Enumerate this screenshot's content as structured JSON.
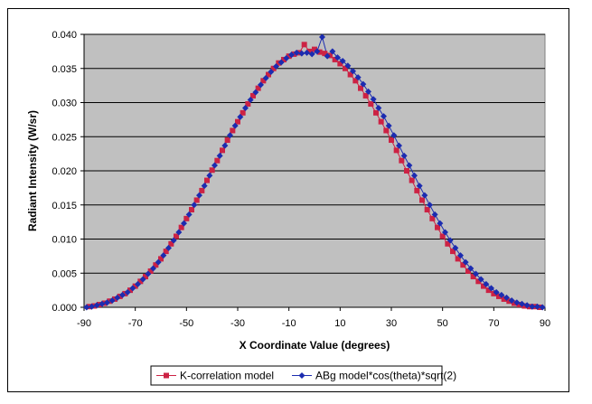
{
  "chart_data": {
    "type": "line",
    "title": "",
    "xlabel": "X Coordinate Value (degrees)",
    "ylabel": "Radiant Intensity (W/sr)",
    "xlim": [
      -90,
      90
    ],
    "ylim": [
      0,
      0.04
    ],
    "xticks": [
      "-90",
      "-70",
      "-50",
      "-30",
      "-10",
      "10",
      "30",
      "50",
      "70",
      "90"
    ],
    "yticks": [
      "0.000",
      "0.005",
      "0.010",
      "0.015",
      "0.020",
      "0.025",
      "0.030",
      "0.035",
      "0.040"
    ],
    "grid": "horizontal",
    "legend_position": "bottom",
    "colors": {
      "plot_bg": "#c0c0c0",
      "series1": "#cc2244",
      "series2": "#1c2cb0"
    },
    "series": [
      {
        "name": "K-correlation model",
        "marker": "square",
        "x": [
          -88,
          -86,
          -84,
          -82,
          -80,
          -78,
          -76,
          -74,
          -72,
          -70,
          -68,
          -66,
          -64,
          -62,
          -60,
          -58,
          -56,
          -54,
          -52,
          -50,
          -48,
          -46,
          -44,
          -42,
          -40,
          -38,
          -36,
          -34,
          -32,
          -30,
          -28,
          -26,
          -24,
          -22,
          -20,
          -18,
          -16,
          -14,
          -12,
          -10,
          -8,
          -6,
          -4,
          -2,
          0,
          2,
          4,
          6,
          8,
          10,
          12,
          14,
          16,
          18,
          20,
          22,
          24,
          26,
          28,
          30,
          32,
          34,
          36,
          38,
          40,
          42,
          44,
          46,
          48,
          50,
          52,
          54,
          56,
          58,
          60,
          62,
          64,
          66,
          68,
          70,
          72,
          74,
          76,
          78,
          80,
          82,
          84,
          86,
          88
        ],
        "y": [
          0.0001,
          0.0002,
          0.0004,
          0.0006,
          0.0009,
          0.0012,
          0.0016,
          0.002,
          0.0025,
          0.0031,
          0.0038,
          0.0045,
          0.0053,
          0.0062,
          0.0071,
          0.0082,
          0.0093,
          0.0104,
          0.0117,
          0.013,
          0.0143,
          0.0157,
          0.0171,
          0.0186,
          0.0201,
          0.0215,
          0.023,
          0.0245,
          0.0259,
          0.0272,
          0.0285,
          0.0298,
          0.031,
          0.0321,
          0.0332,
          0.0341,
          0.035,
          0.0358,
          0.0363,
          0.0368,
          0.0371,
          0.0373,
          0.0385,
          0.0375,
          0.0378,
          0.0374,
          0.0372,
          0.0369,
          0.0363,
          0.0357,
          0.035,
          0.0341,
          0.0332,
          0.0321,
          0.031,
          0.0298,
          0.0285,
          0.0272,
          0.0259,
          0.0245,
          0.023,
          0.0215,
          0.02,
          0.0186,
          0.0171,
          0.0157,
          0.0143,
          0.013,
          0.0117,
          0.0104,
          0.0093,
          0.0082,
          0.0071,
          0.0062,
          0.0053,
          0.0045,
          0.0038,
          0.0031,
          0.0025,
          0.002,
          0.0016,
          0.0012,
          0.0009,
          0.0006,
          0.0004,
          0.0002,
          0.0001,
          0.0001,
          0.0
        ]
      },
      {
        "name": "ABg model*cos(theta)*sqrt(2)",
        "marker": "diamond",
        "x": [
          -89,
          -87,
          -85,
          -83,
          -81,
          -79,
          -77,
          -75,
          -73,
          -71,
          -69,
          -67,
          -65,
          -63,
          -61,
          -59,
          -57,
          -55,
          -53,
          -51,
          -49,
          -47,
          -45,
          -43,
          -41,
          -39,
          -37,
          -35,
          -33,
          -31,
          -29,
          -27,
          -25,
          -23,
          -21,
          -19,
          -17,
          -15,
          -13,
          -11,
          -9,
          -7,
          -5,
          -3,
          -1,
          1,
          3,
          5,
          7,
          9,
          11,
          13,
          15,
          17,
          19,
          21,
          23,
          25,
          27,
          29,
          31,
          33,
          35,
          37,
          39,
          41,
          43,
          45,
          47,
          49,
          51,
          53,
          55,
          57,
          59,
          61,
          63,
          65,
          67,
          69,
          71,
          73,
          75,
          77,
          79,
          81,
          83,
          85,
          87,
          89
        ],
        "y": [
          0.0,
          0.0001,
          0.0003,
          0.0005,
          0.0007,
          0.001,
          0.0014,
          0.0018,
          0.0022,
          0.0028,
          0.0034,
          0.0041,
          0.0049,
          0.0057,
          0.0066,
          0.0076,
          0.0087,
          0.0098,
          0.011,
          0.0123,
          0.0136,
          0.015,
          0.0164,
          0.0178,
          0.0193,
          0.0208,
          0.0222,
          0.0237,
          0.0252,
          0.0266,
          0.0279,
          0.0292,
          0.0304,
          0.0315,
          0.0326,
          0.0336,
          0.0345,
          0.0353,
          0.0359,
          0.0365,
          0.037,
          0.0373,
          0.0372,
          0.0373,
          0.0371,
          0.0375,
          0.0396,
          0.0368,
          0.0375,
          0.0366,
          0.0361,
          0.0354,
          0.0346,
          0.0337,
          0.0327,
          0.0316,
          0.0305,
          0.0292,
          0.028,
          0.0266,
          0.0252,
          0.0237,
          0.0222,
          0.0208,
          0.0193,
          0.0178,
          0.0164,
          0.015,
          0.0136,
          0.0123,
          0.011,
          0.0098,
          0.0087,
          0.0076,
          0.0066,
          0.0057,
          0.0049,
          0.0041,
          0.0034,
          0.0028,
          0.0022,
          0.0018,
          0.0014,
          0.001,
          0.0007,
          0.0005,
          0.0003,
          0.0001,
          0.0001,
          0.0
        ]
      }
    ]
  }
}
